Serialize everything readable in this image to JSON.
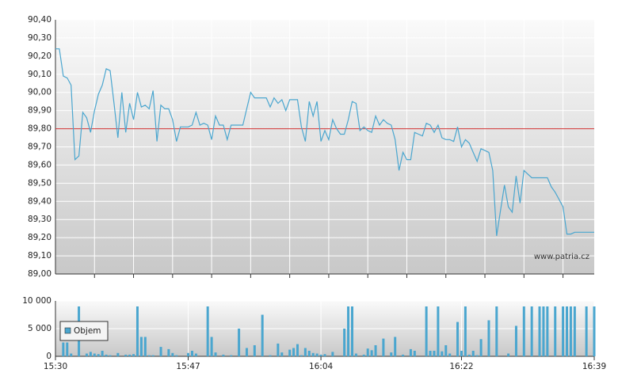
{
  "chart_data": [
    {
      "type": "line",
      "x": [
        0,
        0.5,
        1,
        1.5,
        2,
        2.5,
        3,
        3.5,
        4,
        4.5,
        5,
        5.5,
        6,
        6.5,
        7,
        7.5,
        8,
        8.5,
        9,
        9.5,
        10,
        10.5,
        11,
        11.5,
        12,
        12.5,
        13,
        13.5,
        14,
        14.5,
        15,
        15.5,
        16,
        16.5,
        17,
        17.5,
        18,
        18.5,
        19,
        19.5,
        20,
        20.5,
        21,
        21.5,
        22,
        22.5,
        23,
        23.5,
        24,
        24.5,
        25,
        25.5,
        26,
        26.5,
        27,
        27.5,
        28,
        28.5,
        29,
        29.5,
        30,
        30.5,
        31,
        31.5,
        32,
        32.5,
        33,
        33.5,
        34,
        34.5,
        35,
        35.5,
        36,
        36.5,
        37,
        37.5,
        38,
        38.5,
        39,
        39.5,
        40,
        40.5,
        41,
        41.5,
        42,
        42.5,
        43,
        43.5,
        44,
        44.5,
        45,
        45.5,
        46,
        46.5,
        47,
        47.5,
        48,
        48.5,
        49,
        49.5,
        50,
        50.5,
        51,
        51.5,
        52,
        52.5,
        53,
        53.5,
        54,
        54.5,
        55,
        55.5,
        56,
        56.5,
        57,
        57.5,
        58,
        58.5,
        59,
        59.5,
        60,
        60.5,
        61,
        61.5,
        62,
        62.5,
        63,
        63.5,
        64,
        64.5,
        65,
        65.5,
        66,
        66.5,
        67,
        67.5,
        68,
        68.5,
        69
      ],
      "series": [
        {
          "color": "#4aa6cf",
          "values": [
            90.24,
            90.24,
            90.09,
            90.08,
            90.04,
            89.63,
            89.65,
            89.89,
            89.86,
            89.78,
            89.9,
            89.99,
            90.04,
            90.13,
            90.12,
            89.94,
            89.75,
            90.0,
            89.78,
            89.94,
            89.85,
            90.0,
            89.92,
            89.93,
            89.91,
            90.01,
            89.73,
            89.93,
            89.91,
            89.91,
            89.85,
            89.73,
            89.81,
            89.81,
            89.81,
            89.82,
            89.89,
            89.82,
            89.83,
            89.82,
            89.74,
            89.87,
            89.82,
            89.82,
            89.74,
            89.82,
            89.82,
            89.82,
            89.82,
            89.91,
            90.0,
            89.97,
            89.97,
            89.97,
            89.97,
            89.92,
            89.97,
            89.94,
            89.96,
            89.9,
            89.96,
            89.96,
            89.96,
            89.81,
            89.73,
            89.95,
            89.87,
            89.95,
            89.73,
            89.79,
            89.74,
            89.85,
            89.8,
            89.77,
            89.77,
            89.85,
            89.95,
            89.94,
            89.79,
            89.81,
            89.79,
            89.78,
            89.87,
            89.82,
            89.85,
            89.83,
            89.82,
            89.74,
            89.57,
            89.67,
            89.63,
            89.63,
            89.78,
            89.77,
            89.76,
            89.83,
            89.82,
            89.78,
            89.82,
            89.75,
            89.74,
            89.74,
            89.73,
            89.81,
            89.7,
            89.74,
            89.72,
            89.67,
            89.62,
            89.69,
            89.68,
            89.67,
            89.57,
            89.21,
            89.35,
            89.49,
            89.37,
            89.34,
            89.54,
            89.39,
            89.57,
            89.55,
            89.53,
            89.53,
            89.53,
            89.53,
            89.53,
            89.48,
            89.45,
            89.41,
            89.37,
            89.22,
            89.22,
            89.23,
            89.23,
            89.23,
            89.23,
            89.23,
            89.23
          ]
        }
      ],
      "xlim": [
        0,
        69
      ],
      "xgrid": [
        5,
        10,
        15,
        20,
        25,
        30,
        35,
        40,
        45,
        50,
        55,
        60,
        65
      ],
      "ylim": [
        89.0,
        90.4
      ],
      "yticks": [
        {
          "value": 89.0,
          "label": "89,00"
        },
        {
          "value": 89.1,
          "label": "89,10"
        },
        {
          "value": 89.2,
          "label": "89,20"
        },
        {
          "value": 89.3,
          "label": "89,30"
        },
        {
          "value": 89.4,
          "label": "89,40"
        },
        {
          "value": 89.5,
          "label": "89,50"
        },
        {
          "value": 89.6,
          "label": "89,60"
        },
        {
          "value": 89.7,
          "label": "89,70"
        },
        {
          "value": 89.8,
          "label": "89,80"
        },
        {
          "value": 89.9,
          "label": "89,90"
        },
        {
          "value": 90.0,
          "label": "90,00"
        },
        {
          "value": 90.1,
          "label": "90,10"
        },
        {
          "value": 90.2,
          "label": "90,20"
        },
        {
          "value": 90.3,
          "label": "90,30"
        },
        {
          "value": 90.4,
          "label": "90,40"
        }
      ],
      "reference_line": {
        "value": 89.8,
        "color": "#d03030"
      },
      "grid": true,
      "annotation": "www.patria.cz"
    },
    {
      "type": "bar",
      "x": [
        0,
        0.5,
        1,
        1.5,
        2,
        2.5,
        3,
        3.5,
        4,
        4.5,
        5,
        5.5,
        6,
        6.5,
        7,
        7.5,
        8,
        8.5,
        9,
        9.5,
        10,
        10.5,
        11,
        11.5,
        12,
        12.5,
        13,
        13.5,
        14,
        14.5,
        15,
        15.5,
        16,
        16.5,
        17,
        17.5,
        18,
        18.5,
        19,
        19.5,
        20,
        20.5,
        21,
        21.5,
        22,
        22.5,
        23,
        23.5,
        24,
        24.5,
        25,
        25.5,
        26,
        26.5,
        27,
        27.5,
        28,
        28.5,
        29,
        29.5,
        30,
        30.5,
        31,
        31.5,
        32,
        32.5,
        33,
        33.5,
        34,
        34.5,
        35,
        35.5,
        36,
        36.5,
        37,
        37.5,
        38,
        38.5,
        39,
        39.5,
        40,
        40.5,
        41,
        41.5,
        42,
        42.5,
        43,
        43.5,
        44,
        44.5,
        45,
        45.5,
        46,
        46.5,
        47,
        47.5,
        48,
        48.5,
        49,
        49.5,
        50,
        50.5,
        51,
        51.5,
        52,
        52.5,
        53,
        53.5,
        54,
        54.5,
        55,
        55.5,
        56,
        56.5,
        57,
        57.5,
        58,
        58.5,
        59,
        59.5,
        60,
        60.5,
        61,
        61.5,
        62,
        62.5,
        63,
        63.5,
        64,
        64.5,
        65,
        65.5,
        66,
        66.5,
        67,
        67.5,
        68,
        68.5,
        69
      ],
      "series": [
        {
          "name": "Objem",
          "color": "#4aa6cf",
          "values": [
            0,
            0,
            2500,
            2500,
            500,
            0,
            9000,
            0,
            500,
            800,
            500,
            400,
            1000,
            300,
            200,
            0,
            600,
            0,
            300,
            300,
            400,
            9000,
            3500,
            3500,
            200,
            200,
            0,
            1700,
            0,
            1300,
            600,
            200,
            0,
            0,
            600,
            1000,
            500,
            0,
            0,
            9000,
            3500,
            700,
            0,
            300,
            0,
            200,
            0,
            5000,
            0,
            1500,
            0,
            2000,
            0,
            7500,
            0,
            200,
            0,
            2300,
            700,
            0,
            1200,
            1500,
            2200,
            200,
            1500,
            1000,
            600,
            500,
            300,
            400,
            0,
            800,
            0,
            0,
            5000,
            9000,
            9000,
            500,
            0,
            300,
            1400,
            1100,
            2000,
            0,
            3200,
            0,
            700,
            3500,
            0,
            300,
            0,
            1300,
            1000,
            0,
            0,
            9000,
            1000,
            1000,
            9000,
            900,
            2000,
            500,
            0,
            6200,
            1000,
            9000,
            300,
            1000,
            200,
            3100,
            0,
            6500,
            0,
            9000,
            0,
            0,
            500,
            0,
            5500,
            0,
            9000,
            0,
            9000,
            0,
            9000,
            9000,
            9000,
            0,
            9000,
            0,
            9000,
            9000,
            9000,
            9000,
            0,
            0,
            9000,
            0,
            9000
          ]
        }
      ],
      "xlim": [
        0,
        69
      ],
      "xticks": [
        {
          "value": 0,
          "label": "15:30"
        },
        {
          "value": 17,
          "label": "15:47"
        },
        {
          "value": 34,
          "label": "16:04"
        },
        {
          "value": 52,
          "label": "16:22"
        },
        {
          "value": 69,
          "label": "16:39"
        }
      ],
      "ylim": [
        0,
        10000
      ],
      "yticks": [
        0,
        {
          "value": 5000,
          "label": "5 000"
        },
        {
          "value": 10000,
          "label": "10 000"
        }
      ],
      "grid": true,
      "legend": "upper-left"
    }
  ]
}
